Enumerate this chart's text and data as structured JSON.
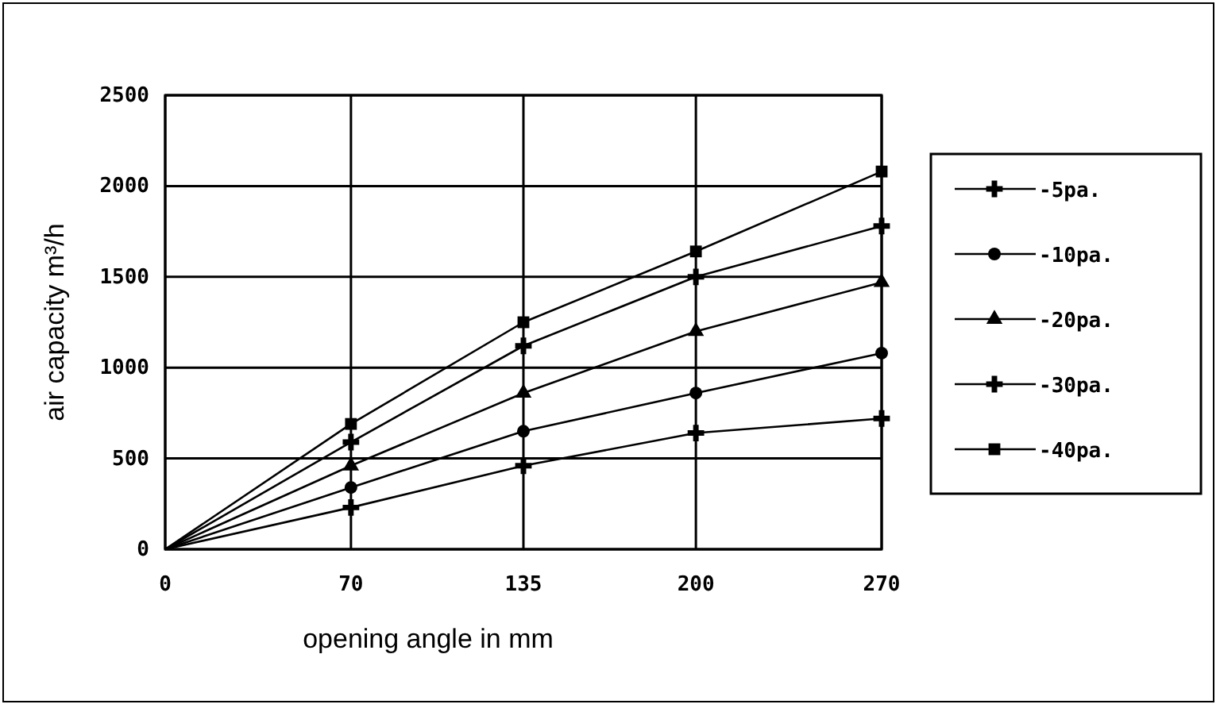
{
  "chart_data": {
    "type": "line",
    "xlabel": "opening angle in mm",
    "ylabel": "air capacity m³/h",
    "x": [
      0,
      70,
      135,
      200,
      270
    ],
    "series": [
      {
        "name": "-5pa.",
        "color": "#000000",
        "marker": "cross",
        "values": [
          0,
          230,
          460,
          640,
          720
        ]
      },
      {
        "name": "-10pa.",
        "color": "#000000",
        "marker": "circle",
        "values": [
          0,
          340,
          650,
          860,
          1080
        ]
      },
      {
        "name": "-20pa.",
        "color": "#000000",
        "marker": "triangle",
        "values": [
          0,
          460,
          860,
          1200,
          1470
        ]
      },
      {
        "name": "-30pa.",
        "color": "#000000",
        "marker": "cross",
        "values": [
          0,
          590,
          1120,
          1500,
          1780
        ]
      },
      {
        "name": "-40pa.",
        "color": "#000000",
        "marker": "square",
        "values": [
          0,
          690,
          1250,
          1640,
          2080
        ]
      }
    ],
    "xlim": [
      0,
      270
    ],
    "xticks": [
      0,
      70,
      135,
      200,
      270
    ],
    "ylim": [
      0,
      2500
    ],
    "yticks": [
      0,
      500,
      1000,
      1500,
      2000,
      2500
    ],
    "grid": true,
    "legend": "right",
    "line_style": "solid"
  }
}
